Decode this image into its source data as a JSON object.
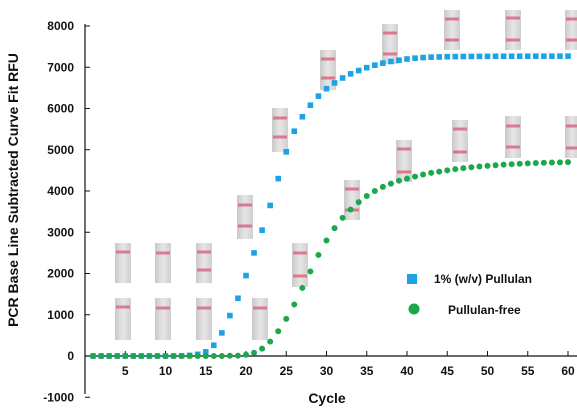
{
  "chart_data": {
    "type": "scatter",
    "xlabel": "Cycle",
    "ylabel": "PCR Base Line Subtracted Curve Fit RFU",
    "xlim": [
      0,
      60
    ],
    "ylim": [
      -1000,
      8000
    ],
    "xticks": [
      5,
      10,
      15,
      20,
      25,
      30,
      35,
      40,
      45,
      50,
      55,
      60
    ],
    "yticks": [
      -1000,
      0,
      1000,
      2000,
      3000,
      4000,
      5000,
      6000,
      7000,
      8000
    ],
    "x_tick_labels": [
      "5",
      "10",
      "15",
      "20",
      "25",
      "30",
      "35",
      "40",
      "45",
      "50",
      "55",
      "60"
    ],
    "y_tick_labels": [
      "-1000",
      "0",
      "1000",
      "2000",
      "3000",
      "4000",
      "5000",
      "6000",
      "7000",
      "8000"
    ],
    "legend_position": "center-right",
    "grid": false,
    "series": [
      {
        "name": "1% (w/v) Pullulan",
        "marker": "square",
        "color": "#1ba3e3",
        "x": [
          1,
          2,
          3,
          4,
          5,
          6,
          7,
          8,
          9,
          10,
          11,
          12,
          13,
          14,
          15,
          16,
          17,
          18,
          19,
          20,
          21,
          22,
          23,
          24,
          25,
          26,
          27,
          28,
          29,
          30,
          31,
          32,
          33,
          34,
          35,
          36,
          37,
          38,
          39,
          40,
          41,
          42,
          43,
          44,
          45,
          46,
          47,
          48,
          49,
          50,
          51,
          52,
          53,
          54,
          55,
          56,
          57,
          58,
          59,
          60
        ],
        "values": [
          0,
          0,
          0,
          0,
          0,
          0,
          0,
          0,
          0,
          0,
          0,
          5,
          15,
          40,
          100,
          260,
          560,
          980,
          1400,
          1950,
          2500,
          3050,
          3650,
          4300,
          4950,
          5450,
          5800,
          6080,
          6300,
          6480,
          6620,
          6740,
          6840,
          6920,
          6990,
          7050,
          7100,
          7140,
          7170,
          7200,
          7220,
          7235,
          7245,
          7250,
          7255,
          7258,
          7260,
          7262,
          7263,
          7264,
          7265,
          7266,
          7266,
          7267,
          7267,
          7268,
          7268,
          7268,
          7269,
          7270
        ]
      },
      {
        "name": "Pullulan-free",
        "marker": "circle",
        "color": "#1aa84a",
        "x": [
          1,
          2,
          3,
          4,
          5,
          6,
          7,
          8,
          9,
          10,
          11,
          12,
          13,
          14,
          15,
          16,
          17,
          18,
          19,
          20,
          21,
          22,
          23,
          24,
          25,
          26,
          27,
          28,
          29,
          30,
          31,
          32,
          33,
          34,
          35,
          36,
          37,
          38,
          39,
          40,
          41,
          42,
          43,
          44,
          45,
          46,
          47,
          48,
          49,
          50,
          51,
          52,
          53,
          54,
          55,
          56,
          57,
          58,
          59,
          60
        ],
        "values": [
          0,
          0,
          0,
          0,
          0,
          0,
          0,
          0,
          0,
          0,
          0,
          0,
          0,
          0,
          0,
          0,
          0,
          5,
          10,
          30,
          80,
          180,
          350,
          600,
          900,
          1250,
          1650,
          2050,
          2450,
          2800,
          3100,
          3350,
          3550,
          3730,
          3880,
          4000,
          4100,
          4180,
          4250,
          4300,
          4350,
          4400,
          4440,
          4470,
          4500,
          4530,
          4555,
          4575,
          4595,
          4610,
          4625,
          4640,
          4650,
          4660,
          4670,
          4680,
          4685,
          4690,
          4695,
          4700
        ]
      }
    ],
    "gel_band_images": true
  }
}
